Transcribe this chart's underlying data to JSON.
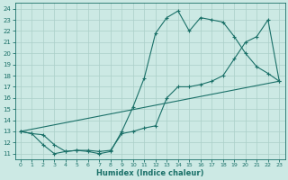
{
  "xlabel": "Humidex (Indice chaleur)",
  "bg_color": "#cce9e4",
  "line_color": "#1a7068",
  "grid_color": "#aacfc8",
  "xlim": [
    -0.5,
    23.5
  ],
  "ylim": [
    10.5,
    24.5
  ],
  "xticks": [
    0,
    1,
    2,
    3,
    4,
    5,
    6,
    7,
    8,
    9,
    10,
    11,
    12,
    13,
    14,
    15,
    16,
    17,
    18,
    19,
    20,
    21,
    22,
    23
  ],
  "yticks": [
    11,
    12,
    13,
    14,
    15,
    16,
    17,
    18,
    19,
    20,
    21,
    22,
    23,
    24
  ],
  "line1_x": [
    0,
    1,
    2,
    3,
    4,
    5,
    6,
    7,
    8,
    9,
    10,
    11,
    12,
    13,
    14,
    15,
    16,
    17,
    18,
    19,
    20,
    21,
    22,
    23
  ],
  "line1_y": [
    13.0,
    12.8,
    12.7,
    11.8,
    11.2,
    11.3,
    11.3,
    11.2,
    11.3,
    12.8,
    13.0,
    13.3,
    13.5,
    16.0,
    17.0,
    17.0,
    17.2,
    17.5,
    18.0,
    19.5,
    21.0,
    21.5,
    23.0,
    17.5
  ],
  "line2_x": [
    0,
    1,
    2,
    3,
    4,
    5,
    6,
    7,
    8,
    9,
    10,
    11,
    12,
    13,
    14,
    15,
    16,
    17,
    18,
    19,
    20,
    21,
    22,
    23
  ],
  "line2_y": [
    13.0,
    12.8,
    11.8,
    11.0,
    11.2,
    11.3,
    11.2,
    11.0,
    11.2,
    13.0,
    15.2,
    17.8,
    21.8,
    23.2,
    23.8,
    22.0,
    23.2,
    23.0,
    22.8,
    21.5,
    20.0,
    18.8,
    18.2,
    17.5
  ],
  "line3_x": [
    0,
    23
  ],
  "line3_y": [
    13.0,
    17.5
  ]
}
